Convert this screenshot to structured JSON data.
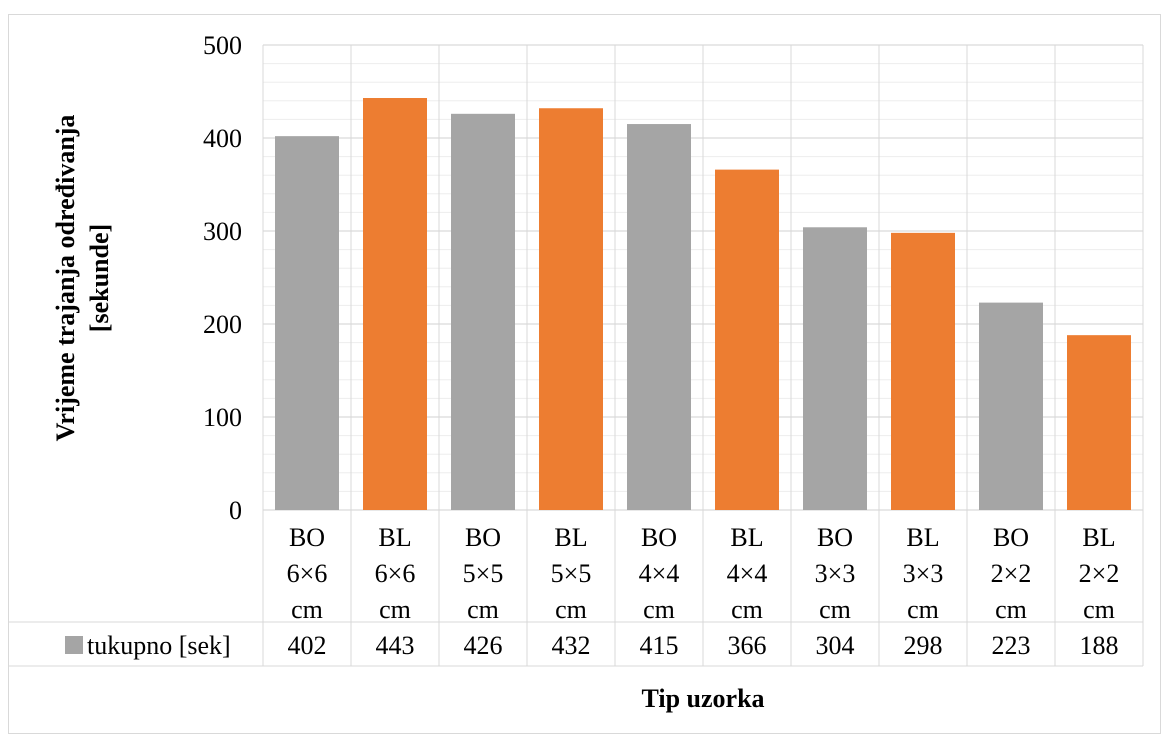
{
  "chart_data": {
    "type": "bar",
    "categories": [
      [
        "BO",
        "6×6",
        "cm"
      ],
      [
        "BL",
        "6×6",
        "cm"
      ],
      [
        "BO",
        "5×5",
        "cm"
      ],
      [
        "BL",
        "5×5",
        "cm"
      ],
      [
        "BO",
        "4×4",
        "cm"
      ],
      [
        "BL",
        "4×4",
        "cm"
      ],
      [
        "BO",
        "3×3",
        "cm"
      ],
      [
        "BL",
        "3×3",
        "cm"
      ],
      [
        "BO",
        "2×2",
        "cm"
      ],
      [
        "BL",
        "2×2",
        "cm"
      ]
    ],
    "series": [
      {
        "name": "tukupno [sek]",
        "values": [
          402,
          443,
          426,
          432,
          415,
          366,
          304,
          298,
          223,
          188
        ],
        "point_colors": [
          "#a5a5a5",
          "#ed7d31",
          "#a5a5a5",
          "#ed7d31",
          "#a5a5a5",
          "#ed7d31",
          "#a5a5a5",
          "#ed7d31",
          "#a5a5a5",
          "#ed7d31"
        ],
        "legend_color": "#a5a5a5"
      }
    ],
    "title": "",
    "xlabel": "Tip uzorka",
    "ylabel_lines": [
      "Vrijeme trajanja određivanja",
      "[sekunde]"
    ],
    "ylim": [
      0,
      500
    ],
    "y_ticks": [
      0,
      100,
      200,
      300,
      400,
      500
    ],
    "y_minor_step": 20,
    "grid": true,
    "data_table": true,
    "colors": {
      "major_grid": "#d9d9d9",
      "minor_grid": "#ededed",
      "frame": "#d9d9d9"
    }
  }
}
